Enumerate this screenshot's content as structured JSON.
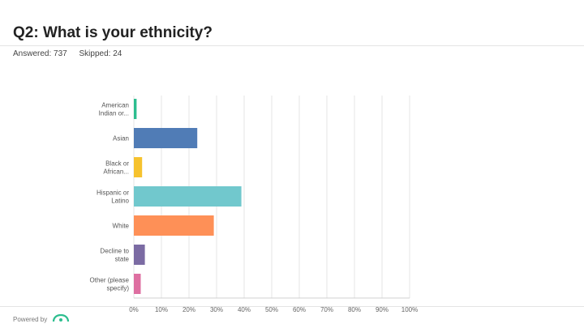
{
  "question": {
    "title": "Q2: What is your ethnicity?",
    "answered": "Answered: 737",
    "skipped": "Skipped: 24"
  },
  "footer": {
    "powered_by": "Powered by",
    "logo_icon": "surveymonkey-logo-icon"
  },
  "chart_data": {
    "type": "bar",
    "orientation": "horizontal",
    "categories": [
      [
        "American",
        "Indian or..."
      ],
      [
        "Asian"
      ],
      [
        "Black or",
        "African..."
      ],
      [
        "Hispanic or",
        "Latino"
      ],
      [
        "White"
      ],
      [
        "Decline to",
        "state"
      ],
      [
        "Other (please",
        "specify)"
      ]
    ],
    "values": [
      1,
      23,
      3,
      39,
      29,
      4,
      2.5
    ],
    "colors": [
      "#2dbe8f",
      "#507cb6",
      "#f6c22e",
      "#71c8cd",
      "#fe9057",
      "#7b6ba3",
      "#de6fa1"
    ],
    "xlim": [
      0,
      100
    ],
    "xticks": [
      "0%",
      "10%",
      "20%",
      "30%",
      "40%",
      "50%",
      "60%",
      "70%",
      "80%",
      "90%",
      "100%"
    ],
    "grid": true
  }
}
